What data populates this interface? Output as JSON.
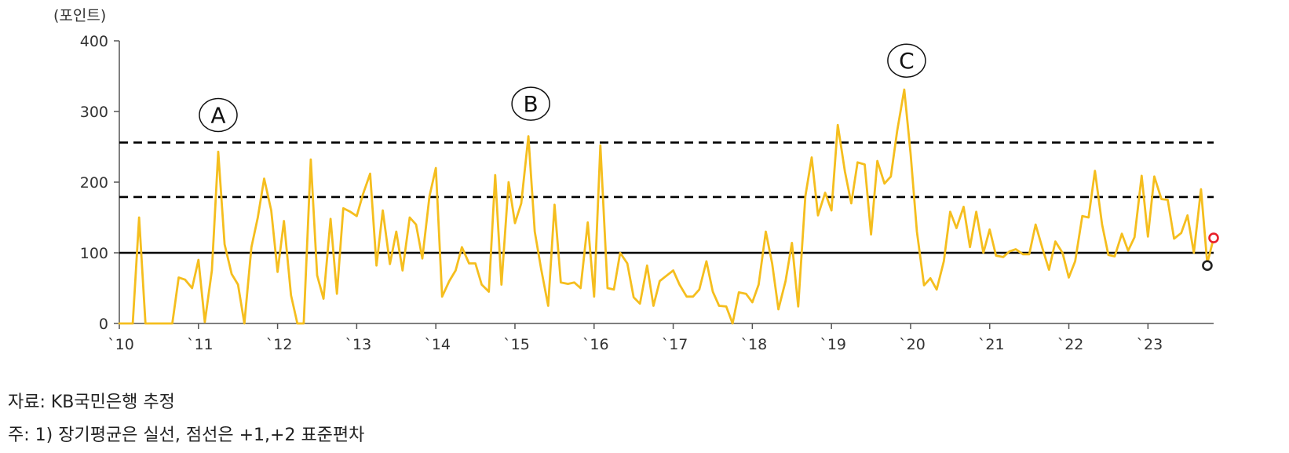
{
  "chart_data": {
    "type": "line",
    "y_unit_label": "(포인트)",
    "ylim": [
      0,
      400
    ],
    "yticks": [
      0,
      100,
      200,
      300,
      400
    ],
    "xlim": [
      2010,
      2023.83
    ],
    "xticks": [
      {
        "label": "`10",
        "value": 2010
      },
      {
        "label": "`11",
        "value": 2011
      },
      {
        "label": "`12",
        "value": 2012
      },
      {
        "label": "`13",
        "value": 2013
      },
      {
        "label": "`14",
        "value": 2014
      },
      {
        "label": "`15",
        "value": 2015
      },
      {
        "label": "`16",
        "value": 2016
      },
      {
        "label": "`17",
        "value": 2017
      },
      {
        "label": "`18",
        "value": 2018
      },
      {
        "label": "`19",
        "value": 2019
      },
      {
        "label": "`20",
        "value": 2020
      },
      {
        "label": "`21",
        "value": 2021
      },
      {
        "label": "`22",
        "value": 2022
      },
      {
        "label": "`23",
        "value": 2023
      }
    ],
    "grid": false,
    "reference_lines": [
      {
        "value": 100,
        "style": "solid",
        "color": "#000000"
      },
      {
        "value": 179,
        "style": "dashed",
        "color": "#000000"
      },
      {
        "value": 256,
        "style": "dashed",
        "color": "#000000"
      }
    ],
    "series": [
      {
        "color": "#F5BE1E",
        "x": [
          2010.0,
          2010.08,
          2010.17,
          2010.25,
          2010.33,
          2010.42,
          2010.5,
          2010.58,
          2010.67,
          2010.75,
          2010.83,
          2010.92,
          2011.0,
          2011.08,
          2011.17,
          2011.25,
          2011.33,
          2011.42,
          2011.5,
          2011.58,
          2011.67,
          2011.75,
          2011.83,
          2011.92,
          2012.0,
          2012.08,
          2012.17,
          2012.25,
          2012.33,
          2012.42,
          2012.5,
          2012.58,
          2012.67,
          2012.75,
          2012.83,
          2012.92,
          2013.0,
          2013.08,
          2013.17,
          2013.25,
          2013.33,
          2013.42,
          2013.5,
          2013.58,
          2013.67,
          2013.75,
          2013.83,
          2013.92,
          2014.0,
          2014.08,
          2014.17,
          2014.25,
          2014.33,
          2014.42,
          2014.5,
          2014.58,
          2014.67,
          2014.75,
          2014.83,
          2014.92,
          2015.0,
          2015.08,
          2015.17,
          2015.25,
          2015.33,
          2015.42,
          2015.5,
          2015.58,
          2015.67,
          2015.75,
          2015.83,
          2015.92,
          2016.0,
          2016.08,
          2016.17,
          2016.25,
          2016.33,
          2016.42,
          2016.5,
          2016.58,
          2016.67,
          2016.75,
          2016.83,
          2016.92,
          2017.0,
          2017.08,
          2017.17,
          2017.25,
          2017.33,
          2017.42,
          2017.5,
          2017.58,
          2017.67,
          2017.75,
          2017.83,
          2017.92,
          2018.0,
          2018.08,
          2018.17,
          2018.25,
          2018.33,
          2018.42,
          2018.5,
          2018.58,
          2018.67,
          2018.75,
          2018.83,
          2018.92,
          2019.0,
          2019.08,
          2019.17,
          2019.25,
          2019.33,
          2019.42,
          2019.5,
          2019.58,
          2019.67,
          2019.75,
          2019.83,
          2019.92,
          2020.0,
          2020.08,
          2020.17,
          2020.25,
          2020.33,
          2020.42,
          2020.5,
          2020.58,
          2020.67,
          2020.75,
          2020.83,
          2020.92,
          2021.0,
          2021.08,
          2021.17,
          2021.25,
          2021.33,
          2021.42,
          2021.5,
          2021.58,
          2021.67,
          2021.75,
          2021.83,
          2021.92,
          2022.0,
          2022.08,
          2022.17,
          2022.25,
          2022.33,
          2022.42,
          2022.5,
          2022.58,
          2022.67,
          2022.75,
          2022.83,
          2022.92,
          2023.0,
          2023.08,
          2023.17,
          2023.25,
          2023.33,
          2023.42,
          2023.5,
          2023.58,
          2023.67,
          2023.75,
          2023.83
        ],
        "y": [
          0,
          0,
          0,
          150,
          0,
          0,
          0,
          0,
          0,
          65,
          62,
          50,
          90,
          2,
          75,
          243,
          112,
          70,
          55,
          0,
          108,
          150,
          205,
          160,
          73,
          145,
          40,
          0,
          0,
          232,
          68,
          35,
          148,
          42,
          163,
          158,
          152,
          183,
          212,
          82,
          160,
          84,
          130,
          75,
          150,
          140,
          92,
          180,
          220,
          38,
          60,
          75,
          108,
          85,
          85,
          55,
          45,
          210,
          55,
          200,
          142,
          170,
          265,
          130,
          78,
          25,
          168,
          58,
          56,
          58,
          50,
          143,
          38,
          252,
          50,
          48,
          100,
          85,
          37,
          28,
          82,
          25,
          60,
          68,
          75,
          55,
          38,
          38,
          48,
          88,
          45,
          25,
          24,
          0,
          44,
          42,
          30,
          55,
          130,
          85,
          20,
          60,
          114,
          24,
          180,
          235,
          153,
          185,
          160,
          281,
          215,
          170,
          228,
          225,
          126,
          230,
          198,
          208,
          272,
          331,
          240,
          130,
          54,
          64,
          48,
          88,
          158,
          135,
          165,
          108,
          158,
          100,
          133,
          96,
          94,
          102,
          105,
          98,
          98,
          140,
          105,
          76,
          116,
          100,
          65,
          88,
          152,
          150,
          216,
          140,
          97,
          95,
          127,
          103,
          122,
          209,
          123,
          208,
          176,
          175,
          120,
          128,
          153,
          100,
          190,
          85,
          121
        ]
      }
    ],
    "markers": [
      {
        "x": 2023.75,
        "y": 82,
        "color": "#222222",
        "shape": "open-circle"
      },
      {
        "x": 2023.83,
        "y": 121,
        "color": "#E8202A",
        "shape": "open-circle"
      }
    ],
    "annotations": [
      {
        "label": "A",
        "x": 2011.25,
        "y": 295
      },
      {
        "label": "B",
        "x": 2015.2,
        "y": 311
      },
      {
        "label": "C",
        "x": 2019.95,
        "y": 372
      }
    ]
  },
  "notes": {
    "source": "자료: KB국민은행 추정",
    "footnote": "주: 1) 장기평균은 실선, 점선은 +1,+2 표준편차"
  }
}
